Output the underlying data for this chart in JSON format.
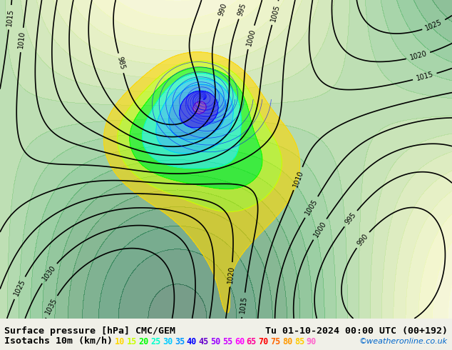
{
  "title_left": "Surface pressure [hPa] CMC/GEM",
  "title_right": "Tu 01-10-2024 00:00 UTC (00+192)",
  "legend_label": "Isotachs 10m (km/h)",
  "copyright": "©weatheronline.co.uk",
  "isotach_values": [
    10,
    15,
    20,
    25,
    30,
    35,
    40,
    45,
    50,
    55,
    60,
    65,
    70,
    75,
    80,
    85,
    90
  ],
  "isotach_colors": [
    "#ffff00",
    "#c8ff00",
    "#00ff00",
    "#00ffaa",
    "#00ffff",
    "#00aaff",
    "#0055ff",
    "#0000ff",
    "#5500ff",
    "#aa00ff",
    "#ff00ff",
    "#ff00aa",
    "#ff0055",
    "#ff0000",
    "#ff5500",
    "#ffaa00",
    "#ff55aa"
  ],
  "bg_color": "#f0f0e8",
  "map_bg": "#ccffcc",
  "bottom_bar_color": "#f0f0e8",
  "text_color": "#000000",
  "font_size_title": 9.5,
  "font_size_legend": 9.5,
  "figsize": [
    6.34,
    4.9
  ],
  "dpi": 100
}
